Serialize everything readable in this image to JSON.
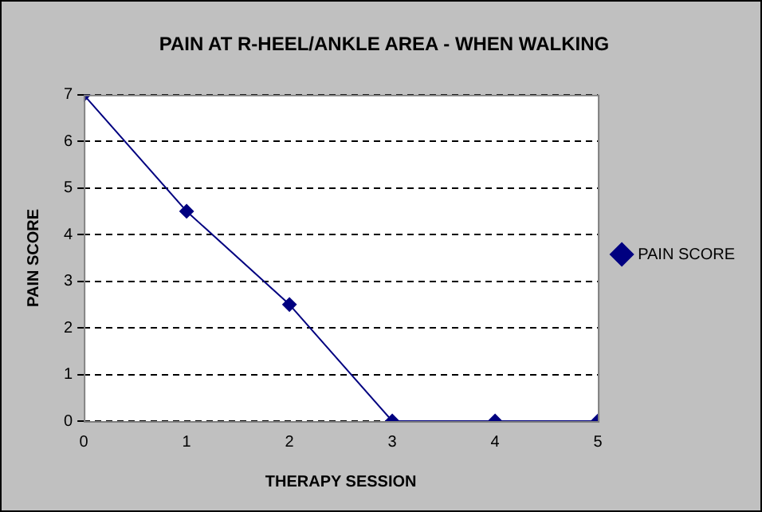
{
  "chart_data": {
    "type": "line",
    "title": "PAIN AT R-HEEL/ANKLE AREA - WHEN WALKING",
    "xlabel": "THERAPY SESSION",
    "ylabel": "PAIN SCORE",
    "x": [
      0,
      1,
      2,
      3,
      4,
      5
    ],
    "series": [
      {
        "name": "PAIN SCORE",
        "color": "#000080",
        "values": [
          7,
          4.5,
          2.5,
          0,
          0,
          0
        ]
      }
    ],
    "xlim": [
      0,
      5
    ],
    "xticks": [
      0,
      1,
      2,
      3,
      4,
      5
    ],
    "ylim": [
      0,
      7
    ],
    "yticks": [
      0,
      1,
      2,
      3,
      4,
      5,
      6,
      7
    ],
    "grid": "y",
    "legend": "right",
    "marker": "diamond",
    "line_style": "solid"
  }
}
